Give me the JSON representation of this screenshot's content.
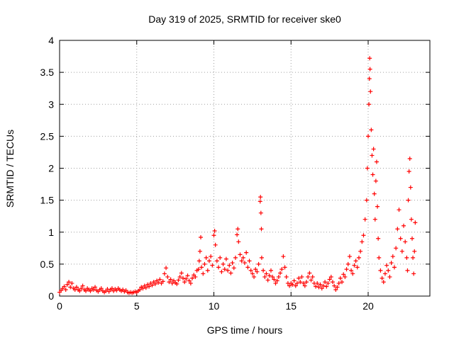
{
  "chart_data": {
    "type": "scatter",
    "title": "Day 319 of 2025, SRMTID for receiver ske0",
    "xlabel": "GPS time / hours",
    "ylabel": "SRMTID / TECUs",
    "xlim": [
      0,
      24
    ],
    "ylim": [
      0,
      4
    ],
    "xticks": [
      0,
      5,
      10,
      15,
      20
    ],
    "xtick_labels": [
      "0",
      "5",
      "10",
      "15",
      "20"
    ],
    "yticks": [
      0,
      0.5,
      1,
      1.5,
      2,
      2.5,
      3,
      3.5,
      4
    ],
    "ytick_labels": [
      "0",
      "0.5",
      "1",
      "1.5",
      "2",
      "2.5",
      "3",
      "3.5",
      "4"
    ],
    "grid": true,
    "marker": "+",
    "series": [
      {
        "name": "SRMTID",
        "color": "#ff0000",
        "points": [
          [
            0.0,
            0.06
          ],
          [
            0.1,
            0.09
          ],
          [
            0.2,
            0.12
          ],
          [
            0.3,
            0.15
          ],
          [
            0.4,
            0.1
          ],
          [
            0.5,
            0.18
          ],
          [
            0.6,
            0.22
          ],
          [
            0.7,
            0.14
          ],
          [
            0.8,
            0.2
          ],
          [
            0.9,
            0.12
          ],
          [
            1.0,
            0.1
          ],
          [
            1.1,
            0.14
          ],
          [
            1.2,
            0.1
          ],
          [
            1.3,
            0.08
          ],
          [
            1.4,
            0.12
          ],
          [
            1.5,
            0.16
          ],
          [
            1.6,
            0.1
          ],
          [
            1.7,
            0.08
          ],
          [
            1.8,
            0.12
          ],
          [
            1.9,
            0.1
          ],
          [
            2.0,
            0.08
          ],
          [
            2.1,
            0.12
          ],
          [
            2.2,
            0.1
          ],
          [
            2.3,
            0.14
          ],
          [
            2.4,
            0.09
          ],
          [
            2.5,
            0.07
          ],
          [
            2.6,
            0.1
          ],
          [
            2.7,
            0.12
          ],
          [
            2.8,
            0.08
          ],
          [
            2.9,
            0.06
          ],
          [
            3.0,
            0.08
          ],
          [
            3.1,
            0.11
          ],
          [
            3.2,
            0.07
          ],
          [
            3.3,
            0.1
          ],
          [
            3.4,
            0.12
          ],
          [
            3.5,
            0.08
          ],
          [
            3.6,
            0.11
          ],
          [
            3.7,
            0.09
          ],
          [
            3.8,
            0.12
          ],
          [
            3.9,
            0.1
          ],
          [
            4.0,
            0.08
          ],
          [
            4.1,
            0.1
          ],
          [
            4.2,
            0.07
          ],
          [
            4.3,
            0.09
          ],
          [
            4.4,
            0.06
          ],
          [
            4.5,
            0.05
          ],
          [
            4.6,
            0.06
          ],
          [
            4.7,
            0.05
          ],
          [
            4.8,
            0.06
          ],
          [
            4.9,
            0.07
          ],
          [
            5.0,
            0.06
          ],
          [
            5.1,
            0.08
          ],
          [
            5.2,
            0.1
          ],
          [
            5.3,
            0.14
          ],
          [
            5.4,
            0.12
          ],
          [
            5.5,
            0.16
          ],
          [
            5.6,
            0.13
          ],
          [
            5.7,
            0.18
          ],
          [
            5.8,
            0.15
          ],
          [
            5.9,
            0.2
          ],
          [
            6.0,
            0.17
          ],
          [
            6.1,
            0.22
          ],
          [
            6.2,
            0.19
          ],
          [
            6.3,
            0.24
          ],
          [
            6.4,
            0.21
          ],
          [
            6.5,
            0.26
          ],
          [
            6.6,
            0.2
          ],
          [
            6.7,
            0.23
          ],
          [
            6.8,
            0.35
          ],
          [
            6.9,
            0.44
          ],
          [
            7.0,
            0.3
          ],
          [
            7.1,
            0.22
          ],
          [
            7.2,
            0.26
          ],
          [
            7.3,
            0.2
          ],
          [
            7.4,
            0.24
          ],
          [
            7.5,
            0.21
          ],
          [
            7.6,
            0.19
          ],
          [
            7.7,
            0.25
          ],
          [
            7.8,
            0.3
          ],
          [
            7.9,
            0.36
          ],
          [
            8.0,
            0.28
          ],
          [
            8.1,
            0.22
          ],
          [
            8.2,
            0.27
          ],
          [
            8.3,
            0.32
          ],
          [
            8.4,
            0.24
          ],
          [
            8.5,
            0.2
          ],
          [
            8.6,
            0.28
          ],
          [
            8.7,
            0.33
          ],
          [
            8.8,
            0.3
          ],
          [
            8.9,
            0.4
          ],
          [
            9.0,
            0.42
          ],
          [
            9.05,
            0.55
          ],
          [
            9.1,
            0.7
          ],
          [
            9.15,
            0.92
          ],
          [
            9.2,
            0.45
          ],
          [
            9.3,
            0.35
          ],
          [
            9.4,
            0.5
          ],
          [
            9.5,
            0.6
          ],
          [
            9.6,
            0.4
          ],
          [
            9.7,
            0.55
          ],
          [
            9.8,
            0.62
          ],
          [
            9.9,
            0.48
          ],
          [
            10.0,
            0.95
          ],
          [
            10.05,
            1.02
          ],
          [
            10.1,
            0.8
          ],
          [
            10.2,
            0.55
          ],
          [
            10.3,
            0.45
          ],
          [
            10.4,
            0.6
          ],
          [
            10.5,
            0.38
          ],
          [
            10.6,
            0.5
          ],
          [
            10.7,
            0.42
          ],
          [
            10.8,
            0.58
          ],
          [
            10.9,
            0.4
          ],
          [
            11.0,
            0.48
          ],
          [
            11.1,
            0.36
          ],
          [
            11.2,
            0.52
          ],
          [
            11.3,
            0.44
          ],
          [
            11.4,
            0.6
          ],
          [
            11.5,
            0.96
          ],
          [
            11.55,
            1.05
          ],
          [
            11.6,
            0.85
          ],
          [
            11.7,
            0.65
          ],
          [
            11.8,
            0.55
          ],
          [
            11.9,
            0.6
          ],
          [
            12.0,
            0.52
          ],
          [
            12.1,
            0.68
          ],
          [
            12.2,
            0.45
          ],
          [
            12.3,
            0.55
          ],
          [
            12.4,
            0.4
          ],
          [
            12.5,
            0.35
          ],
          [
            12.6,
            0.3
          ],
          [
            12.7,
            0.42
          ],
          [
            12.8,
            0.38
          ],
          [
            12.9,
            0.5
          ],
          [
            13.0,
            1.48
          ],
          [
            13.02,
            1.55
          ],
          [
            13.05,
            1.3
          ],
          [
            13.08,
            1.05
          ],
          [
            13.1,
            0.6
          ],
          [
            13.2,
            0.4
          ],
          [
            13.3,
            0.3
          ],
          [
            13.4,
            0.35
          ],
          [
            13.5,
            0.25
          ],
          [
            13.6,
            0.32
          ],
          [
            13.7,
            0.4
          ],
          [
            13.8,
            0.3
          ],
          [
            13.9,
            0.26
          ],
          [
            14.0,
            0.2
          ],
          [
            14.1,
            0.24
          ],
          [
            14.2,
            0.3
          ],
          [
            14.3,
            0.36
          ],
          [
            14.4,
            0.42
          ],
          [
            14.5,
            0.62
          ],
          [
            14.6,
            0.45
          ],
          [
            14.7,
            0.3
          ],
          [
            14.8,
            0.2
          ],
          [
            14.9,
            0.16
          ],
          [
            15.0,
            0.2
          ],
          [
            15.1,
            0.18
          ],
          [
            15.2,
            0.24
          ],
          [
            15.3,
            0.16
          ],
          [
            15.4,
            0.2
          ],
          [
            15.5,
            0.28
          ],
          [
            15.6,
            0.22
          ],
          [
            15.7,
            0.3
          ],
          [
            15.8,
            0.2
          ],
          [
            15.9,
            0.16
          ],
          [
            16.0,
            0.22
          ],
          [
            16.1,
            0.3
          ],
          [
            16.2,
            0.36
          ],
          [
            16.3,
            0.25
          ],
          [
            16.4,
            0.3
          ],
          [
            16.5,
            0.2
          ],
          [
            16.6,
            0.15
          ],
          [
            16.7,
            0.2
          ],
          [
            16.8,
            0.14
          ],
          [
            16.9,
            0.18
          ],
          [
            17.0,
            0.12
          ],
          [
            17.1,
            0.16
          ],
          [
            17.2,
            0.22
          ],
          [
            17.3,
            0.15
          ],
          [
            17.4,
            0.2
          ],
          [
            17.5,
            0.26
          ],
          [
            17.6,
            0.3
          ],
          [
            17.7,
            0.22
          ],
          [
            17.8,
            0.16
          ],
          [
            17.9,
            0.1
          ],
          [
            18.0,
            0.14
          ],
          [
            18.1,
            0.2
          ],
          [
            18.2,
            0.28
          ],
          [
            18.3,
            0.22
          ],
          [
            18.4,
            0.34
          ],
          [
            18.5,
            0.3
          ],
          [
            18.6,
            0.42
          ],
          [
            18.7,
            0.5
          ],
          [
            18.8,
            0.62
          ],
          [
            18.9,
            0.4
          ],
          [
            19.0,
            0.35
          ],
          [
            19.1,
            0.48
          ],
          [
            19.2,
            0.55
          ],
          [
            19.3,
            0.45
          ],
          [
            19.4,
            0.6
          ],
          [
            19.5,
            0.7
          ],
          [
            19.6,
            0.85
          ],
          [
            19.7,
            0.95
          ],
          [
            19.8,
            1.2
          ],
          [
            19.9,
            1.5
          ],
          [
            19.95,
            2.0
          ],
          [
            20.0,
            2.5
          ],
          [
            20.05,
            3.0
          ],
          [
            20.08,
            3.4
          ],
          [
            20.1,
            3.72
          ],
          [
            20.12,
            3.55
          ],
          [
            20.15,
            3.2
          ],
          [
            20.2,
            2.6
          ],
          [
            20.25,
            2.2
          ],
          [
            20.3,
            1.9
          ],
          [
            20.35,
            2.3
          ],
          [
            20.4,
            1.6
          ],
          [
            20.45,
            1.2
          ],
          [
            20.5,
            1.8
          ],
          [
            20.55,
            2.1
          ],
          [
            20.6,
            1.4
          ],
          [
            20.65,
            0.9
          ],
          [
            20.7,
            0.6
          ],
          [
            20.8,
            0.4
          ],
          [
            20.9,
            0.28
          ],
          [
            21.0,
            0.22
          ],
          [
            21.1,
            0.35
          ],
          [
            21.2,
            0.48
          ],
          [
            21.3,
            0.4
          ],
          [
            21.4,
            0.3
          ],
          [
            21.5,
            0.52
          ],
          [
            21.6,
            0.62
          ],
          [
            21.7,
            0.45
          ],
          [
            21.8,
            0.75
          ],
          [
            21.9,
            1.05
          ],
          [
            22.0,
            1.35
          ],
          [
            22.1,
            0.9
          ],
          [
            22.2,
            0.7
          ],
          [
            22.3,
            1.1
          ],
          [
            22.4,
            0.85
          ],
          [
            22.5,
            0.6
          ],
          [
            22.55,
            0.4
          ],
          [
            22.6,
            1.5
          ],
          [
            22.65,
            1.95
          ],
          [
            22.7,
            2.15
          ],
          [
            22.75,
            1.7
          ],
          [
            22.8,
            1.2
          ],
          [
            22.85,
            0.9
          ],
          [
            22.9,
            0.6
          ],
          [
            22.95,
            0.35
          ],
          [
            23.0,
            0.7
          ],
          [
            23.05,
            1.15
          ]
        ]
      }
    ]
  }
}
